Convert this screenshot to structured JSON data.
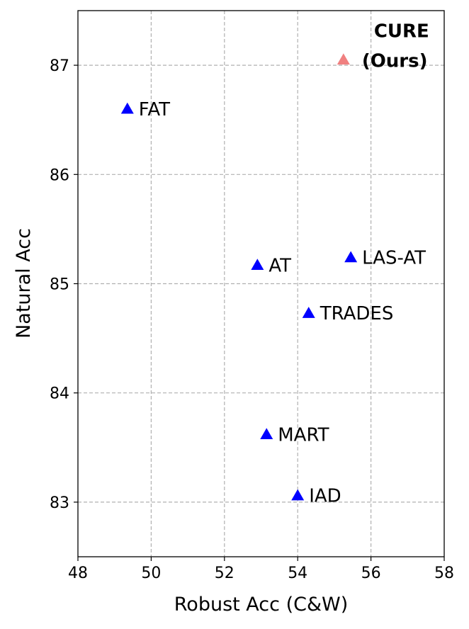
{
  "chart_data": {
    "type": "scatter",
    "xlabel": "Robust Acc (C&W)",
    "ylabel": "Natural Acc",
    "xlim": [
      48,
      58
    ],
    "ylim": [
      82.5,
      87.5
    ],
    "xticks": [
      48,
      50,
      52,
      54,
      56,
      58
    ],
    "yticks": [
      83,
      84,
      85,
      86,
      87
    ],
    "grid": true,
    "points": [
      {
        "label": "FAT",
        "x": 49.35,
        "y": 86.6,
        "color": "#0000ff"
      },
      {
        "label": "AT",
        "x": 52.9,
        "y": 85.17,
        "color": "#0000ff"
      },
      {
        "label": "LAS-AT",
        "x": 55.45,
        "y": 85.24,
        "color": "#0000ff"
      },
      {
        "label": "TRADES",
        "x": 54.3,
        "y": 84.73,
        "color": "#0000ff"
      },
      {
        "label": "MART",
        "x": 53.15,
        "y": 83.62,
        "color": "#0000ff"
      },
      {
        "label": "IAD",
        "x": 54.0,
        "y": 83.06,
        "color": "#0000ff"
      },
      {
        "label_lines": [
          "CURE",
          "(Ours)"
        ],
        "x": 55.25,
        "y": 87.05,
        "color": "#f08080",
        "highlight": true
      }
    ]
  }
}
